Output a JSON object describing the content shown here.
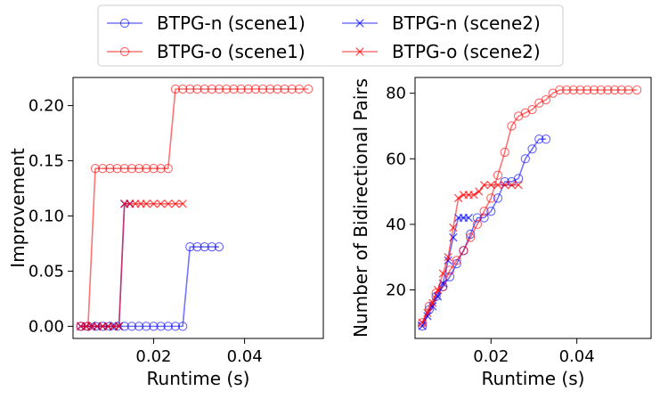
{
  "legend": {
    "entries": [
      {
        "label": "BTPG-n (scene1)",
        "color": "#0000ff",
        "marker": "circle"
      },
      {
        "label": "BTPG-o (scene1)",
        "color": "#ff0000",
        "marker": "circle"
      },
      {
        "label": "BTPG-n (scene2)",
        "color": "#0000ff",
        "marker": "x"
      },
      {
        "label": "BTPG-o (scene2)",
        "color": "#ff0000",
        "marker": "x"
      }
    ]
  },
  "chart_data": [
    {
      "type": "line",
      "xlabel": "Runtime (s)",
      "ylabel": "Improvement",
      "xlim": [
        0.0023,
        0.0573
      ],
      "ylim": [
        -0.011,
        0.2255
      ],
      "xticks": [
        0.02,
        0.04
      ],
      "xtick_labels": [
        "0.02",
        "0.04"
      ],
      "yticks": [
        0.0,
        0.05,
        0.1,
        0.15,
        0.2
      ],
      "ytick_labels": [
        "0.00",
        "0.05",
        "0.10",
        "0.15",
        "0.20"
      ],
      "series": [
        {
          "name": "BTPG-n (scene1)",
          "color": "#0000ff",
          "marker": "circle",
          "x": [
            0.004,
            0.0056,
            0.0072,
            0.0088,
            0.0104,
            0.012,
            0.0136,
            0.0152,
            0.0168,
            0.0184,
            0.02,
            0.0216,
            0.0232,
            0.0248,
            0.0264,
            0.028,
            0.0296,
            0.0312,
            0.0328,
            0.0344
          ],
          "y": [
            0,
            0,
            0,
            0,
            0,
            0,
            0,
            0,
            0,
            0,
            0,
            0,
            0,
            0,
            0,
            0.072,
            0.072,
            0.072,
            0.072,
            0.072
          ]
        },
        {
          "name": "BTPG-o (scene1)",
          "color": "#ff0000",
          "marker": "circle",
          "x": [
            0.004,
            0.0056,
            0.0072,
            0.0088,
            0.0104,
            0.012,
            0.0136,
            0.0152,
            0.0168,
            0.0184,
            0.02,
            0.0216,
            0.0232,
            0.0248,
            0.0264,
            0.028,
            0.0296,
            0.0312,
            0.0328,
            0.0344,
            0.036,
            0.0376,
            0.0392,
            0.0408,
            0.0424,
            0.044,
            0.0456,
            0.0472,
            0.0488,
            0.0504,
            0.052,
            0.054
          ],
          "y": [
            0,
            0,
            0.143,
            0.143,
            0.143,
            0.143,
            0.143,
            0.143,
            0.143,
            0.143,
            0.143,
            0.143,
            0.143,
            0.215,
            0.215,
            0.215,
            0.215,
            0.215,
            0.215,
            0.215,
            0.215,
            0.215,
            0.215,
            0.215,
            0.215,
            0.215,
            0.215,
            0.215,
            0.215,
            0.215,
            0.215,
            0.215
          ]
        },
        {
          "name": "BTPG-n (scene2)",
          "color": "#0000ff",
          "marker": "x",
          "x": [
            0.004,
            0.0052,
            0.0064,
            0.0076,
            0.0088,
            0.01,
            0.0112,
            0.0124,
            0.0136,
            0.0148
          ],
          "y": [
            0,
            0,
            0,
            0,
            0,
            0,
            0,
            0,
            0.111,
            0.111
          ]
        },
        {
          "name": "BTPG-o (scene2)",
          "color": "#ff0000",
          "marker": "x",
          "x": [
            0.004,
            0.0052,
            0.0064,
            0.0076,
            0.0088,
            0.01,
            0.0112,
            0.0124,
            0.0136,
            0.0148,
            0.016,
            0.0172,
            0.0184,
            0.02,
            0.0216,
            0.0232,
            0.0248,
            0.0264
          ],
          "y": [
            0,
            0,
            0,
            0,
            0,
            0,
            0,
            0,
            0.111,
            0.111,
            0.111,
            0.111,
            0.111,
            0.111,
            0.111,
            0.111,
            0.111,
            0.111
          ]
        }
      ]
    },
    {
      "type": "line",
      "xlabel": "Runtime (s)",
      "ylabel": "Number of Bidirectional Pairs",
      "xlim": [
        0.0023,
        0.0573
      ],
      "ylim": [
        5.2,
        84.8
      ],
      "xticks": [
        0.02,
        0.04
      ],
      "xtick_labels": [
        "0.02",
        "0.04"
      ],
      "yticks": [
        20,
        40,
        60,
        80
      ],
      "ytick_labels": [
        "20",
        "40",
        "60",
        "80"
      ],
      "series": [
        {
          "name": "BTPG-n (scene1)",
          "color": "#0000ff",
          "marker": "circle",
          "x": [
            0.004,
            0.0056,
            0.0072,
            0.0088,
            0.0104,
            0.012,
            0.0136,
            0.0152,
            0.0168,
            0.0184,
            0.02,
            0.0216,
            0.0232,
            0.0248,
            0.0264,
            0.028,
            0.0296,
            0.0312,
            0.0328
          ],
          "y": [
            9,
            14,
            18,
            21,
            24,
            28,
            32,
            37,
            42,
            42,
            44,
            48,
            53,
            53,
            54,
            60,
            63,
            66,
            66
          ]
        },
        {
          "name": "BTPG-o (scene1)",
          "color": "#ff0000",
          "marker": "circle",
          "x": [
            0.004,
            0.0056,
            0.0072,
            0.0088,
            0.0104,
            0.012,
            0.0136,
            0.0152,
            0.0168,
            0.0184,
            0.02,
            0.0216,
            0.0232,
            0.0248,
            0.0264,
            0.028,
            0.0296,
            0.0312,
            0.0328,
            0.0344,
            0.036,
            0.0376,
            0.0392,
            0.0408,
            0.0424,
            0.044,
            0.0456,
            0.0472,
            0.0488,
            0.0504,
            0.052,
            0.054
          ],
          "y": [
            10,
            15,
            19,
            21,
            26,
            29,
            32,
            36,
            40,
            44,
            48,
            55,
            62,
            70,
            73,
            74,
            75,
            77,
            78,
            80,
            81,
            81,
            81,
            81,
            81,
            81,
            81,
            81,
            81,
            81,
            81,
            81
          ]
        },
        {
          "name": "BTPG-n (scene2)",
          "color": "#0000ff",
          "marker": "x",
          "x": [
            0.004,
            0.0052,
            0.0064,
            0.0076,
            0.0088,
            0.01,
            0.0112,
            0.0124,
            0.0136,
            0.0148
          ],
          "y": [
            9,
            12,
            15,
            18,
            22,
            29,
            36,
            42,
            42,
            42
          ]
        },
        {
          "name": "BTPG-o (scene2)",
          "color": "#ff0000",
          "marker": "x",
          "x": [
            0.004,
            0.0052,
            0.0064,
            0.0076,
            0.0088,
            0.01,
            0.0112,
            0.0124,
            0.0136,
            0.0148,
            0.016,
            0.0172,
            0.0184,
            0.02,
            0.0216,
            0.0232,
            0.0248,
            0.0264
          ],
          "y": [
            10,
            13,
            16,
            20,
            25,
            30,
            39,
            48,
            49,
            49,
            49,
            50,
            52,
            52,
            52,
            52,
            52,
            52
          ]
        }
      ]
    }
  ]
}
